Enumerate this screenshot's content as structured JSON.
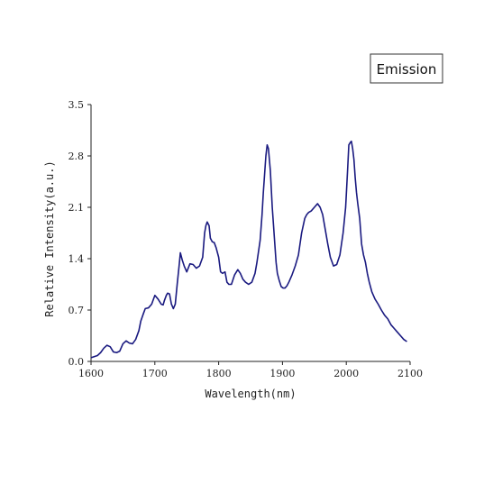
{
  "chart_data": {
    "type": "line",
    "title": "",
    "xlabel": "Wavelength(nm)",
    "ylabel": "Relative Intensity(a.u.)",
    "xlim": [
      1600,
      2100
    ],
    "ylim": [
      0.0,
      3.5
    ],
    "x_ticks": [
      "1600",
      "1700",
      "1800",
      "1900",
      "2000",
      "2100"
    ],
    "y_ticks": [
      "0.0",
      "0.7",
      "1.4",
      "2.1",
      "2.8",
      "3.5"
    ],
    "grid": false,
    "legend_position": "top-right",
    "series": [
      {
        "name": "Emission",
        "color": "#1a1a80",
        "x": [
          1600,
          1610,
          1615,
          1620,
          1625,
          1630,
          1635,
          1640,
          1645,
          1650,
          1655,
          1660,
          1665,
          1670,
          1675,
          1678,
          1682,
          1685,
          1690,
          1695,
          1700,
          1705,
          1710,
          1713,
          1715,
          1718,
          1720,
          1723,
          1726,
          1729,
          1732,
          1735,
          1738,
          1740,
          1743,
          1746,
          1750,
          1755,
          1760,
          1765,
          1770,
          1775,
          1778,
          1780,
          1782,
          1785,
          1787,
          1790,
          1793,
          1796,
          1800,
          1803,
          1806,
          1810,
          1813,
          1816,
          1820,
          1825,
          1830,
          1834,
          1838,
          1842,
          1847,
          1852,
          1857,
          1860,
          1865,
          1868,
          1870,
          1872,
          1874,
          1876,
          1878,
          1881,
          1884,
          1886,
          1888,
          1890,
          1892,
          1895,
          1898,
          1901,
          1904,
          1907,
          1910,
          1915,
          1920,
          1925,
          1930,
          1935,
          1938,
          1941,
          1945,
          1950,
          1955,
          1959,
          1963,
          1967,
          1971,
          1975,
          1980,
          1985,
          1990,
          1995,
          1999,
          2002,
          2004,
          2006,
          2008,
          2010,
          2012,
          2014,
          2016,
          2018,
          2021,
          2024,
          2027,
          2030,
          2033,
          2036,
          2040,
          2045,
          2050,
          2055,
          2060,
          2065,
          2070,
          2075,
          2080,
          2085,
          2090,
          2095
        ],
        "values": [
          0.05,
          0.08,
          0.12,
          0.18,
          0.22,
          0.2,
          0.13,
          0.12,
          0.14,
          0.24,
          0.28,
          0.25,
          0.24,
          0.3,
          0.42,
          0.55,
          0.65,
          0.72,
          0.73,
          0.78,
          0.9,
          0.85,
          0.78,
          0.77,
          0.83,
          0.9,
          0.93,
          0.92,
          0.78,
          0.72,
          0.78,
          1.05,
          1.3,
          1.48,
          1.38,
          1.3,
          1.22,
          1.33,
          1.32,
          1.27,
          1.3,
          1.42,
          1.75,
          1.85,
          1.9,
          1.85,
          1.68,
          1.63,
          1.62,
          1.55,
          1.42,
          1.22,
          1.2,
          1.22,
          1.08,
          1.05,
          1.05,
          1.18,
          1.25,
          1.2,
          1.12,
          1.08,
          1.05,
          1.08,
          1.2,
          1.35,
          1.65,
          2.0,
          2.3,
          2.55,
          2.8,
          2.95,
          2.9,
          2.6,
          2.1,
          1.85,
          1.6,
          1.35,
          1.2,
          1.1,
          1.02,
          1.0,
          1.0,
          1.03,
          1.08,
          1.18,
          1.3,
          1.45,
          1.75,
          1.95,
          2.0,
          2.03,
          2.05,
          2.1,
          2.15,
          2.1,
          2.0,
          1.8,
          1.6,
          1.42,
          1.3,
          1.32,
          1.45,
          1.75,
          2.1,
          2.6,
          2.95,
          2.98,
          3.0,
          2.9,
          2.75,
          2.5,
          2.3,
          2.15,
          1.95,
          1.6,
          1.45,
          1.35,
          1.2,
          1.08,
          0.95,
          0.85,
          0.78,
          0.7,
          0.63,
          0.58,
          0.5,
          0.45,
          0.4,
          0.35,
          0.3,
          0.27
        ]
      }
    ]
  }
}
